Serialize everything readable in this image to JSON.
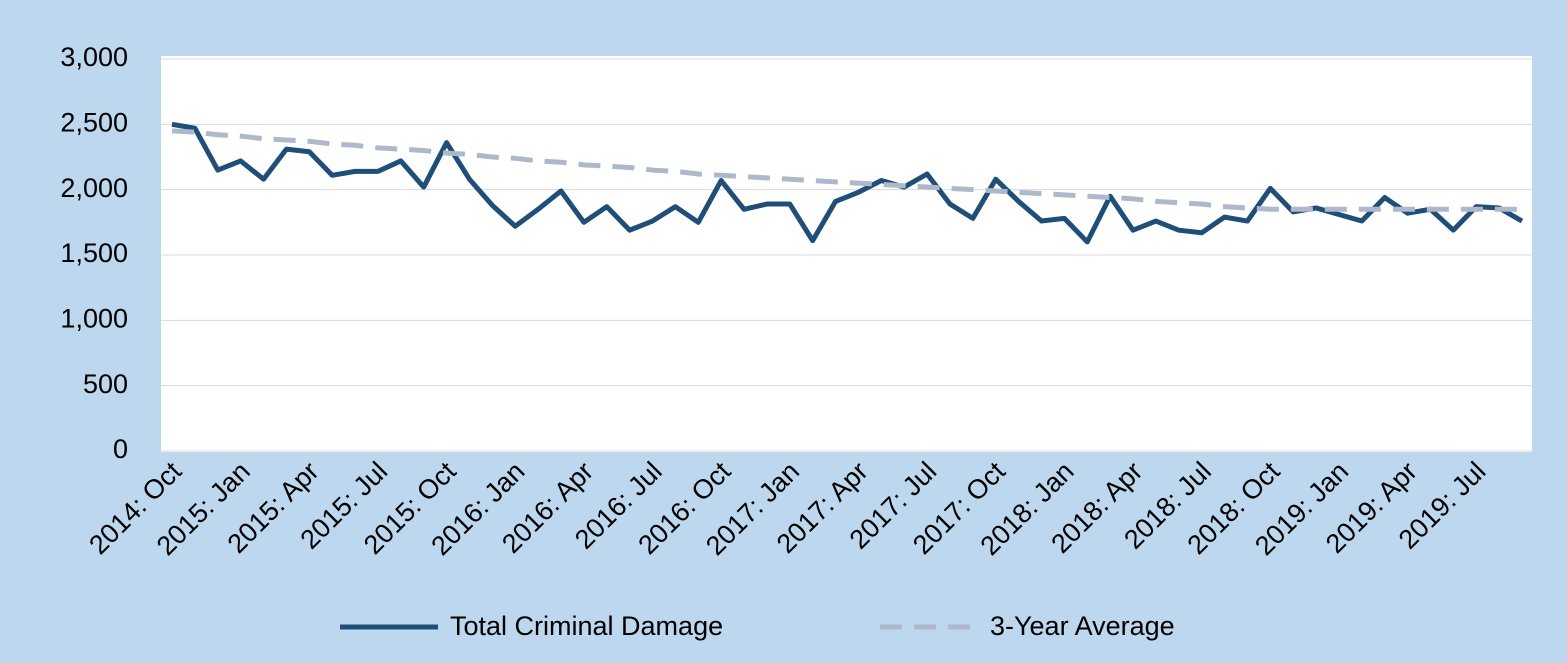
{
  "chart_data": {
    "type": "line",
    "categories": [
      "2014: Oct",
      null,
      null,
      "2015: Jan",
      null,
      null,
      "2015: Apr",
      null,
      null,
      "2015: Jul",
      null,
      null,
      "2015: Oct",
      null,
      null,
      "2016: Jan",
      null,
      null,
      "2016: Apr",
      null,
      null,
      "2016: Jul",
      null,
      null,
      "2016: Oct",
      null,
      null,
      "2017: Jan",
      null,
      null,
      "2017: Apr",
      null,
      null,
      "2017: Jul",
      null,
      null,
      "2017: Oct",
      null,
      null,
      "2018: Jan",
      null,
      null,
      "2018: Apr",
      null,
      null,
      "2018: Jul",
      null,
      null,
      "2018: Oct",
      null,
      null,
      "2019: Jan",
      null,
      null,
      "2019: Apr",
      null,
      null,
      "2019: Jul",
      null,
      null
    ],
    "series": [
      {
        "name": "Total Criminal Damage",
        "color": "#1f4e79",
        "line_style": "solid",
        "values": [
          2500,
          2470,
          2150,
          2220,
          2080,
          2310,
          2290,
          2110,
          2140,
          2140,
          2220,
          2020,
          2360,
          2080,
          1880,
          1720,
          1850,
          1990,
          1750,
          1870,
          1690,
          1760,
          1870,
          1750,
          2070,
          1850,
          1890,
          1890,
          1610,
          1910,
          1980,
          2070,
          2020,
          2120,
          1890,
          1780,
          2080,
          1910,
          1760,
          1780,
          1600,
          1950,
          1690,
          1760,
          1690,
          1670,
          1790,
          1760,
          2010,
          1830,
          1860,
          1810,
          1760,
          1940,
          1820,
          1850,
          1690,
          1870,
          1860,
          1760
        ]
      },
      {
        "name": "3-Year Average",
        "color": "#adb9ca",
        "line_style": "dashed",
        "values": [
          2450,
          2440,
          2420,
          2410,
          2390,
          2380,
          2370,
          2350,
          2340,
          2320,
          2310,
          2300,
          2280,
          2270,
          2250,
          2240,
          2220,
          2210,
          2190,
          2180,
          2170,
          2150,
          2140,
          2120,
          2110,
          2100,
          2090,
          2080,
          2070,
          2060,
          2050,
          2040,
          2030,
          2020,
          2010,
          2000,
          1990,
          1980,
          1970,
          1960,
          1950,
          1940,
          1930,
          1910,
          1900,
          1890,
          1870,
          1860,
          1850,
          1850,
          1850,
          1850,
          1850,
          1850,
          1850,
          1850,
          1850,
          1850,
          1850,
          1850
        ]
      }
    ],
    "ylim": [
      0,
      3000
    ],
    "yticks": [
      0,
      500,
      {
        "value": 1000,
        "label": "1,000"
      },
      {
        "value": 1500,
        "label": "1,500"
      },
      {
        "value": 2000,
        "label": "2,000"
      },
      {
        "value": 2500,
        "label": "2,500"
      },
      {
        "value": 3000,
        "label": "3,000"
      }
    ],
    "grid": true,
    "legend": "bottom"
  }
}
